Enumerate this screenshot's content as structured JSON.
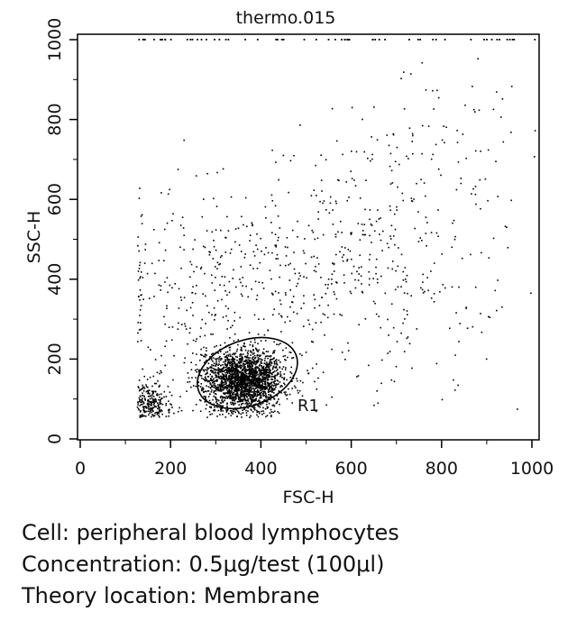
{
  "chart_data": {
    "type": "scatter",
    "title": "thermo.015",
    "xlabel": "FSC-H",
    "ylabel": "SSC-H",
    "xlim": [
      0,
      1024
    ],
    "ylim": [
      0,
      1024
    ],
    "xticks": [
      0,
      200,
      400,
      600,
      800,
      1000
    ],
    "yticks": [
      0,
      200,
      400,
      600,
      800,
      1000
    ],
    "tick_labels_x": [
      "0",
      "200",
      "400",
      "600",
      "800",
      "1000"
    ],
    "tick_labels_y": [
      "0",
      "200",
      "400",
      "600",
      "800",
      "1000"
    ],
    "grid": false,
    "point_color": "#000000",
    "populations": [
      {
        "cx": 360,
        "cy": 150,
        "sx": 45,
        "sy": 38,
        "n": 2200
      },
      {
        "cx": 155,
        "cy": 90,
        "sx": 20,
        "sy": 28,
        "n": 240
      },
      {
        "cx": 560,
        "cy": 430,
        "sx": 170,
        "sy": 140,
        "n": 520
      },
      {
        "cx": 250,
        "cy": 330,
        "sx": 90,
        "sy": 150,
        "n": 220
      },
      {
        "cx": 820,
        "cy": 720,
        "sx": 110,
        "sy": 110,
        "n": 90
      }
    ],
    "saturated_top_events": 60,
    "gate": {
      "name": "R1",
      "shape": "ellipse",
      "center": [
        370,
        165
      ],
      "radii": [
        115,
        82
      ],
      "rotation_deg": -20
    }
  },
  "caption": {
    "cell": "Cell: peripheral blood lymphocytes",
    "concentration": "Concentration: 0.5μg/test (100μl)",
    "location": "Theory location: Membrane"
  }
}
